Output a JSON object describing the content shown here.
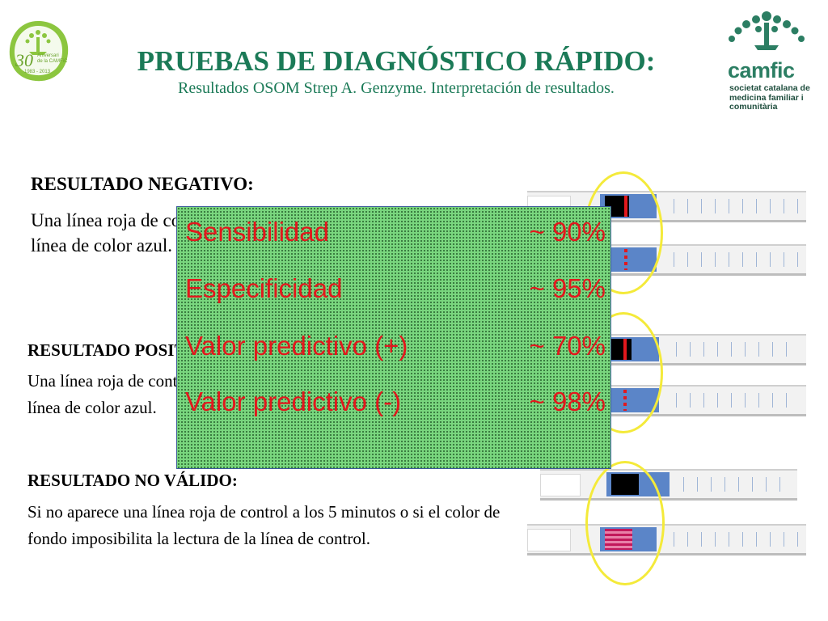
{
  "header": {
    "title": "PRUEBAS DE DIAGNÓSTICO RÁPIDO:",
    "subtitle": "Resultados OSOM Strep A. Genzyme. Interpretación de resultados."
  },
  "logos": {
    "anniversary": {
      "number": "30",
      "line1": "Aniversari",
      "line2": "de la CAMFiC",
      "years": "1983 - 2013"
    },
    "camfic": {
      "name": "camfic",
      "tagline": "societat catalana de medicina familiar i comunitària"
    }
  },
  "sections": {
    "negative": {
      "heading": "RESULTADO NEGATIVO:",
      "text": "Una línea roja de control, sin línea de color azul."
    },
    "positive": {
      "heading": "RESULTADO POSITIVO:",
      "text": "Una línea roja de control y una línea de color azul."
    },
    "invalid": {
      "heading": "RESULTADO NO VÁLIDO:",
      "text": "Si no aparece una línea roja de control a los 5 minutos o si el color de fondo imposibilita la lectura de la línea de control."
    }
  },
  "stats": [
    {
      "label": "Sensibilidad",
      "value": "~ 90%"
    },
    {
      "label": "Especificidad",
      "value": "~ 95%"
    },
    {
      "label": "Valor predictivo (+)",
      "value": "~ 70%"
    },
    {
      "label": "Valor predictivo (-)",
      "value": "~ 98%"
    }
  ],
  "colors": {
    "title_green": "#1b7a57",
    "stat_red": "#e2181d",
    "box_green": "#79d67e",
    "strip_blue": "#5b85c8",
    "highlight_yellow": "#f4ea3a"
  }
}
